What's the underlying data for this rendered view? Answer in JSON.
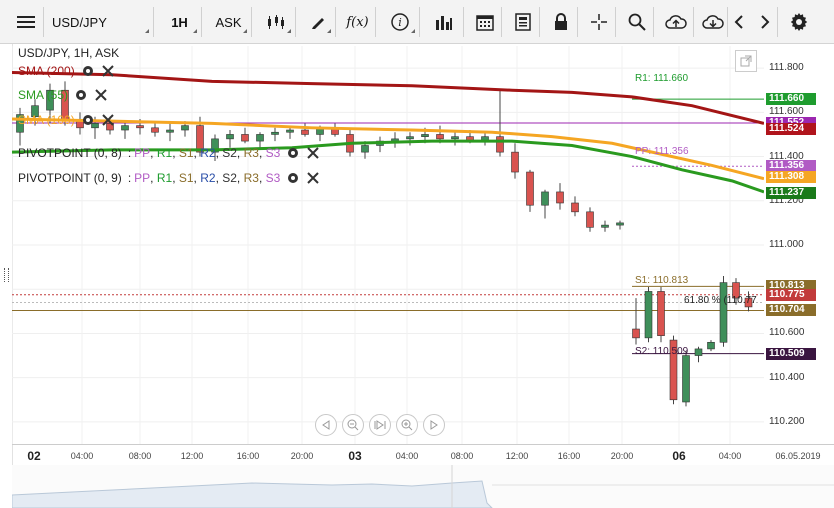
{
  "toolbar": {
    "symbol": "USD/JPY",
    "timeframe": "1H",
    "price_type": "ASK",
    "fx_label": "f(x)"
  },
  "chart": {
    "title": "USD/JPY, 1H, ASK",
    "legend": [
      {
        "label": "SMA (200)",
        "color": "#a31515"
      },
      {
        "label": "SMA (55)",
        "color": "#2a9a1f"
      },
      {
        "label": "SMA (100)",
        "color": "#f5a623"
      }
    ],
    "pivots": [
      {
        "name": "PIVOTPOINT (0, 8)",
        "levels": [
          "PP",
          "R1",
          "S1",
          "R2",
          "S2",
          "R3",
          "S3"
        ]
      },
      {
        "name": "PIVOTPOINT (0, 9)",
        "levels": [
          "PP",
          "R1",
          "S1",
          "R2",
          "S2",
          "R3",
          "S3"
        ]
      }
    ],
    "level_labels": {
      "r1": "R1: 111.660",
      "pp": "PP: 111.356",
      "s1": "S1: 110.813",
      "s2": "S2: 110.509",
      "fib": "61.80 % (110.77"
    },
    "y_ticks": [
      "111.800",
      "111.600",
      "111.400",
      "111.200",
      "111.000",
      "110.800",
      "110.600",
      "110.400",
      "110.200"
    ],
    "badges": [
      {
        "value": "111.660",
        "color": "#1e9c2e"
      },
      {
        "value": "111.552",
        "color": "#9c27b0"
      },
      {
        "value": "111.524",
        "color": "#b0141c"
      },
      {
        "value": "111.356",
        "color": "#b15bc4"
      },
      {
        "value": "111.308",
        "color": "#f5a623"
      },
      {
        "value": "111.237",
        "color": "#1a7a1a"
      },
      {
        "value": "110.813",
        "color": "#8a6d2a"
      },
      {
        "value": "110.775",
        "color": "#c23b3b"
      },
      {
        "value": "110.704",
        "color": "#8a6d2a"
      },
      {
        "value": "110.509",
        "color": "#3a1540"
      }
    ],
    "x_labels": [
      {
        "t": "02",
        "day": true
      },
      {
        "t": "04:00"
      },
      {
        "t": "08:00"
      },
      {
        "t": "12:00"
      },
      {
        "t": "16:00"
      },
      {
        "t": "20:00"
      },
      {
        "t": "03",
        "day": true
      },
      {
        "t": "04:00"
      },
      {
        "t": "08:00"
      },
      {
        "t": "12:00"
      },
      {
        "t": "16:00"
      },
      {
        "t": "20:00"
      },
      {
        "t": "06",
        "day": true
      },
      {
        "t": "04:00"
      },
      {
        "t": "06.05.2019"
      }
    ]
  },
  "chart_data": {
    "type": "candlestick",
    "title": "USD/JPY, 1H, ASK",
    "ylim": [
      110.1,
      111.9
    ],
    "candles": [
      {
        "o": 111.51,
        "h": 111.62,
        "l": 111.45,
        "c": 111.59
      },
      {
        "o": 111.58,
        "h": 111.66,
        "l": 111.54,
        "c": 111.63
      },
      {
        "o": 111.61,
        "h": 111.73,
        "l": 111.55,
        "c": 111.7
      },
      {
        "o": 111.7,
        "h": 111.74,
        "l": 111.54,
        "c": 111.56
      },
      {
        "o": 111.56,
        "h": 111.6,
        "l": 111.5,
        "c": 111.53
      },
      {
        "o": 111.53,
        "h": 111.58,
        "l": 111.48,
        "c": 111.55
      },
      {
        "o": 111.55,
        "h": 111.58,
        "l": 111.5,
        "c": 111.52
      },
      {
        "o": 111.52,
        "h": 111.56,
        "l": 111.48,
        "c": 111.54
      },
      {
        "o": 111.54,
        "h": 111.57,
        "l": 111.5,
        "c": 111.53
      },
      {
        "o": 111.53,
        "h": 111.56,
        "l": 111.49,
        "c": 111.51
      },
      {
        "o": 111.51,
        "h": 111.55,
        "l": 111.47,
        "c": 111.52
      },
      {
        "o": 111.52,
        "h": 111.56,
        "l": 111.49,
        "c": 111.54
      },
      {
        "o": 111.54,
        "h": 111.58,
        "l": 111.4,
        "c": 111.42
      },
      {
        "o": 111.42,
        "h": 111.5,
        "l": 111.38,
        "c": 111.48
      },
      {
        "o": 111.48,
        "h": 111.52,
        "l": 111.44,
        "c": 111.5
      },
      {
        "o": 111.5,
        "h": 111.53,
        "l": 111.46,
        "c": 111.47
      },
      {
        "o": 111.47,
        "h": 111.51,
        "l": 111.44,
        "c": 111.5
      },
      {
        "o": 111.5,
        "h": 111.53,
        "l": 111.47,
        "c": 111.51
      },
      {
        "o": 111.51,
        "h": 111.54,
        "l": 111.48,
        "c": 111.52
      },
      {
        "o": 111.52,
        "h": 111.55,
        "l": 111.49,
        "c": 111.5
      },
      {
        "o": 111.5,
        "h": 111.54,
        "l": 111.47,
        "c": 111.53
      },
      {
        "o": 111.53,
        "h": 111.55,
        "l": 111.49,
        "c": 111.5
      },
      {
        "o": 111.5,
        "h": 111.52,
        "l": 111.4,
        "c": 111.42
      },
      {
        "o": 111.42,
        "h": 111.47,
        "l": 111.39,
        "c": 111.45
      },
      {
        "o": 111.45,
        "h": 111.49,
        "l": 111.42,
        "c": 111.47
      },
      {
        "o": 111.47,
        "h": 111.51,
        "l": 111.44,
        "c": 111.48
      },
      {
        "o": 111.48,
        "h": 111.51,
        "l": 111.45,
        "c": 111.49
      },
      {
        "o": 111.49,
        "h": 111.53,
        "l": 111.46,
        "c": 111.5
      },
      {
        "o": 111.5,
        "h": 111.54,
        "l": 111.46,
        "c": 111.48
      },
      {
        "o": 111.48,
        "h": 111.52,
        "l": 111.45,
        "c": 111.49
      },
      {
        "o": 111.49,
        "h": 111.52,
        "l": 111.46,
        "c": 111.47
      },
      {
        "o": 111.47,
        "h": 111.51,
        "l": 111.45,
        "c": 111.49
      },
      {
        "o": 111.49,
        "h": 111.7,
        "l": 111.4,
        "c": 111.42
      },
      {
        "o": 111.42,
        "h": 111.46,
        "l": 111.3,
        "c": 111.33
      },
      {
        "o": 111.33,
        "h": 111.34,
        "l": 111.15,
        "c": 111.18
      },
      {
        "o": 111.18,
        "h": 111.25,
        "l": 111.12,
        "c": 111.24
      },
      {
        "o": 111.24,
        "h": 111.28,
        "l": 111.16,
        "c": 111.19
      },
      {
        "o": 111.19,
        "h": 111.22,
        "l": 111.13,
        "c": 111.15
      },
      {
        "o": 111.15,
        "h": 111.17,
        "l": 111.06,
        "c": 111.08
      },
      {
        "o": 111.08,
        "h": 111.11,
        "l": 111.06,
        "c": 111.09
      },
      {
        "o": 111.09,
        "h": 111.11,
        "l": 111.07,
        "c": 111.1
      },
      {
        "o": 110.62,
        "h": 110.76,
        "l": 110.55,
        "c": 110.58
      },
      {
        "o": 110.58,
        "h": 110.81,
        "l": 110.56,
        "c": 110.79
      },
      {
        "o": 110.79,
        "h": 110.81,
        "l": 110.56,
        "c": 110.59
      },
      {
        "o": 110.57,
        "h": 110.59,
        "l": 110.28,
        "c": 110.3
      },
      {
        "o": 110.29,
        "h": 110.52,
        "l": 110.27,
        "c": 110.5
      },
      {
        "o": 110.5,
        "h": 110.54,
        "l": 110.47,
        "c": 110.53
      },
      {
        "o": 110.53,
        "h": 110.57,
        "l": 110.52,
        "c": 110.56
      },
      {
        "o": 110.56,
        "h": 110.86,
        "l": 110.54,
        "c": 110.83
      },
      {
        "o": 110.83,
        "h": 110.85,
        "l": 110.73,
        "c": 110.76
      },
      {
        "o": 110.76,
        "h": 110.79,
        "l": 110.7,
        "c": 110.72
      }
    ],
    "series": [
      {
        "name": "SMA (200)",
        "color": "#a31515"
      },
      {
        "name": "SMA (55)",
        "color": "#2a9a1f"
      },
      {
        "name": "SMA (100)",
        "color": "#f5a623"
      }
    ]
  }
}
